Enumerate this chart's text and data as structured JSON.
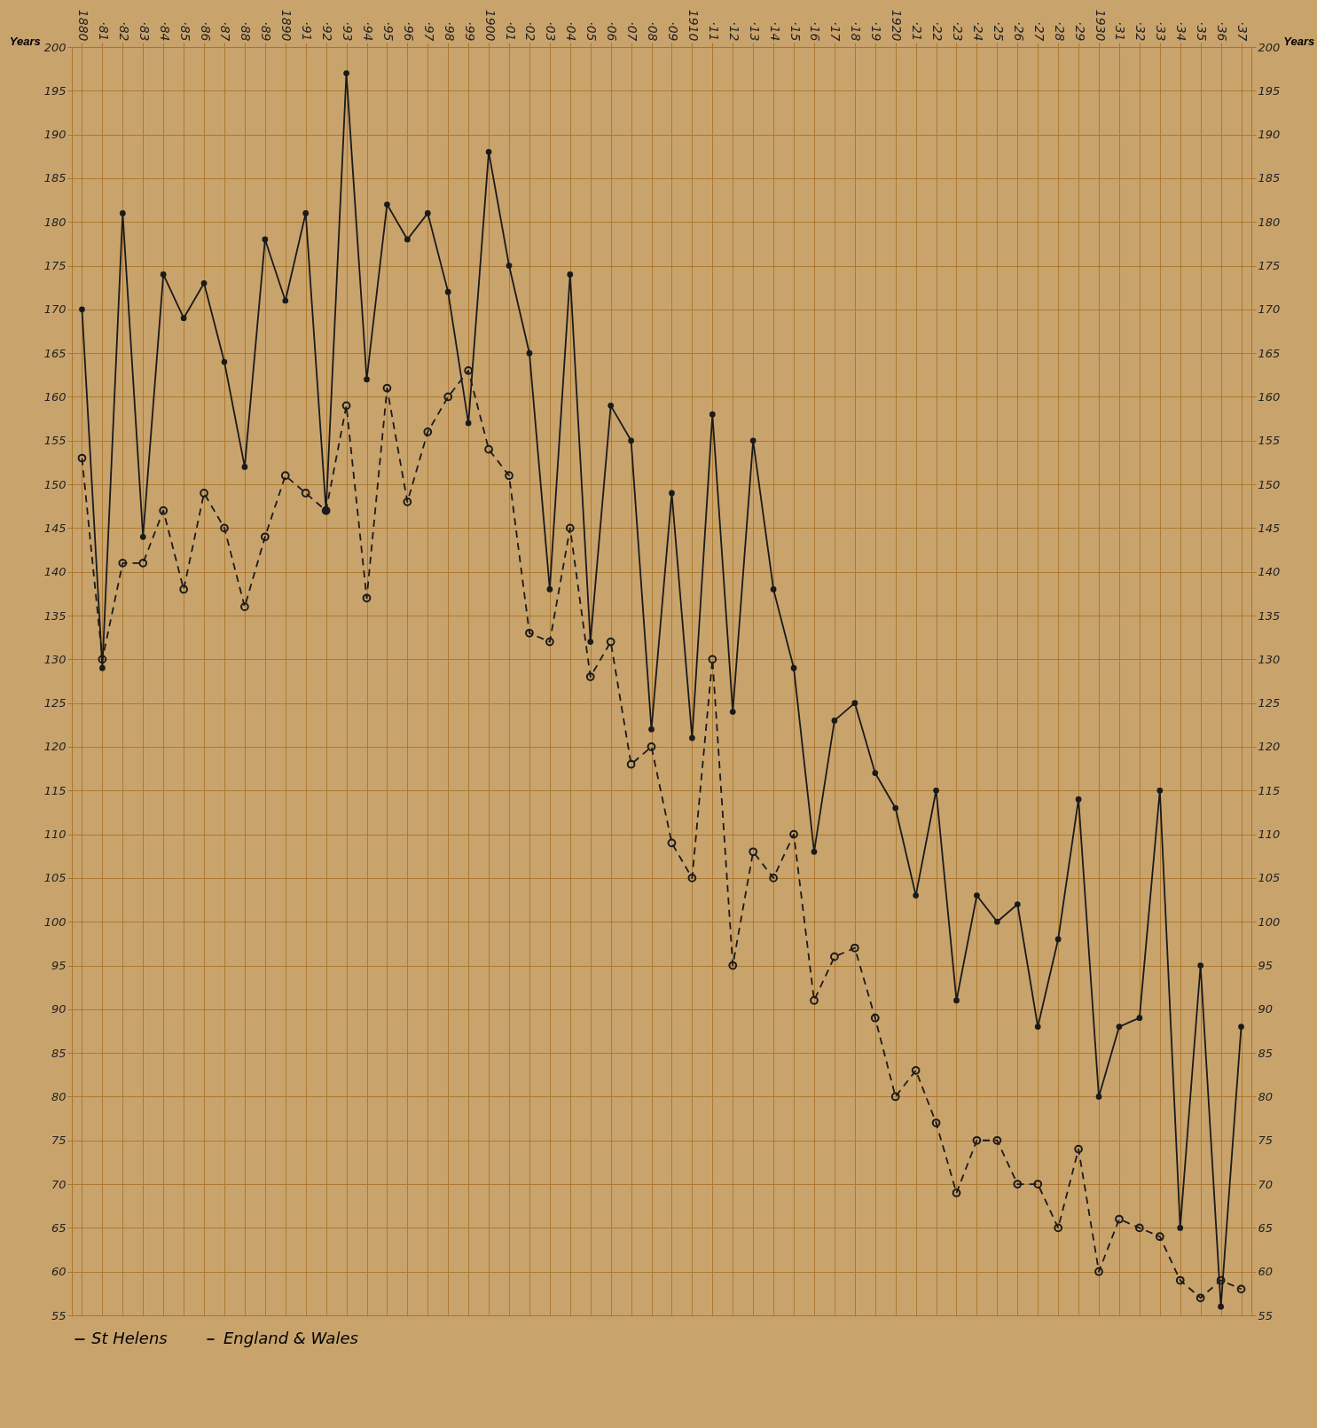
{
  "chart_data": {
    "type": "line",
    "ylabel": "Years",
    "y2label": "Years",
    "categories": [
      "1880",
      "·81",
      "·82",
      "·83",
      "·84",
      "·85",
      "·86",
      "·87",
      "·88",
      "·89",
      "1890",
      "·91",
      "·92",
      "·93",
      "·94",
      "·95",
      "·96",
      "·97",
      "·98",
      "·99",
      "1900",
      "·01",
      "·02",
      "·03",
      "·04",
      "·05",
      "·06",
      "·07",
      "·08",
      "·09",
      "1910",
      "·11",
      "·12",
      "·13",
      "·14",
      "·15",
      "·16",
      "·17",
      "·18",
      "·19",
      "1920",
      "·21",
      "·22",
      "·23",
      "·24",
      "·25",
      "·26",
      "·27",
      "·28",
      "·29",
      "1930",
      "·31",
      "·32",
      "·33",
      "·34",
      "·35",
      "·36",
      "·37"
    ],
    "series": [
      {
        "name": "St Helens",
        "color": "#1a1a1a",
        "line_style": "solid",
        "values": [
          170,
          129,
          181,
          144,
          174,
          169,
          173,
          164,
          152,
          178,
          171,
          181,
          147,
          197,
          162,
          182,
          178,
          181,
          172,
          157,
          188,
          175,
          165,
          138,
          174,
          132,
          159,
          155,
          122,
          149,
          121,
          158,
          124,
          155,
          138,
          129,
          108,
          123,
          125,
          117,
          113,
          103,
          115,
          91,
          103,
          100,
          102,
          88,
          98,
          114,
          80,
          88,
          89,
          115,
          65,
          95,
          56,
          88
        ]
      },
      {
        "name": "England & Wales",
        "color": "#1a1a1a",
        "line_style": "dashed",
        "values": [
          153,
          130,
          141,
          141,
          147,
          138,
          149,
          145,
          136,
          144,
          151,
          149,
          147,
          159,
          137,
          161,
          148,
          156,
          160,
          163,
          154,
          151,
          133,
          132,
          145,
          128,
          132,
          118,
          120,
          109,
          105,
          130,
          95,
          108,
          105,
          110,
          91,
          96,
          97,
          89,
          80,
          83,
          77,
          69,
          75,
          75,
          70,
          70,
          65,
          74,
          60,
          66,
          65,
          64,
          59,
          57,
          59,
          58
        ]
      }
    ],
    "ylim": [
      55,
      200
    ],
    "yticks": [
      55,
      60,
      65,
      70,
      75,
      80,
      85,
      90,
      95,
      100,
      105,
      110,
      115,
      120,
      125,
      130,
      135,
      140,
      145,
      150,
      155,
      160,
      165,
      170,
      175,
      180,
      185,
      190,
      195,
      200
    ],
    "y2lim": [
      55,
      200
    ],
    "y2ticks": [
      55,
      60,
      65,
      70,
      75,
      80,
      85,
      90,
      95,
      100,
      105,
      110,
      115,
      120,
      125,
      130,
      135,
      140,
      145,
      150,
      155,
      160,
      165,
      170,
      175,
      180,
      185,
      190,
      195,
      200
    ],
    "grid": true,
    "legend": "bottom",
    "marker": "circle"
  }
}
